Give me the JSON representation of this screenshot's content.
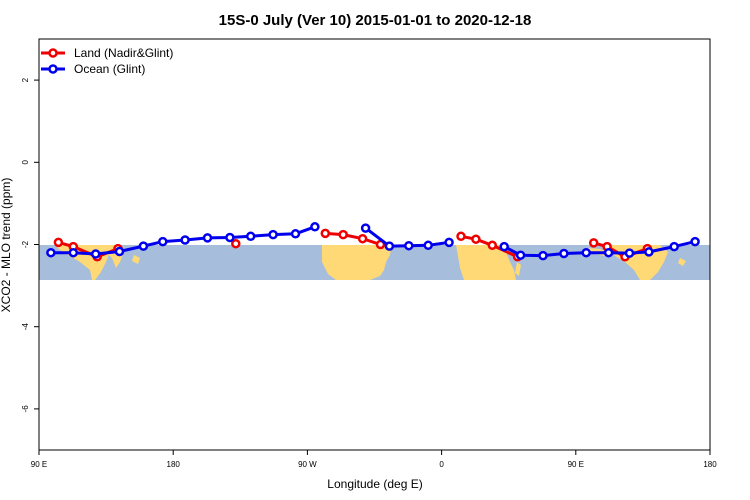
{
  "chart_data": {
    "type": "line",
    "title": "15S-0 July (Ver 10)   2015-01-01 to 2020-12-18",
    "xlabel": "Longitude (deg E)",
    "ylabel": "XCO2 - MLO trend (ppm)",
    "xlim": [
      90,
      540
    ],
    "ylim": [
      -7,
      3
    ],
    "x_ticks": [
      {
        "value": 90,
        "label": "90 E"
      },
      {
        "value": 180,
        "label": "180"
      },
      {
        "value": 270,
        "label": "90 W"
      },
      {
        "value": 360,
        "label": "0"
      },
      {
        "value": 450,
        "label": "90 E"
      },
      {
        "value": 540,
        "label": "180"
      }
    ],
    "y_ticks": [
      {
        "value": 2,
        "label": "2"
      },
      {
        "value": 0,
        "label": "0"
      },
      {
        "value": -2,
        "label": "-2"
      },
      {
        "value": -4,
        "label": "-4"
      },
      {
        "value": -6,
        "label": "-6"
      }
    ],
    "map_band": {
      "lat_range": [
        -15,
        0
      ],
      "ylim": [
        -2.85,
        -2.0
      ],
      "ocean_color": "#a6bddb",
      "land_color": "#fed976"
    },
    "legend_position": "top-left",
    "series": [
      {
        "name": "Land (Nadir&Glint)",
        "color": "#ee0000",
        "segments": [
          {
            "x": [
              103,
              113,
              129,
              143
            ],
            "y": [
              -1.95,
              -2.05,
              -2.3,
              -2.1
            ]
          },
          {
            "x": [
              222
            ],
            "y": [
              -1.98
            ]
          },
          {
            "x": [
              282,
              294,
              307,
              319
            ],
            "y": [
              -1.73,
              -1.76,
              -1.86,
              -2.0
            ]
          },
          {
            "x": [
              373,
              383,
              394,
              411
            ],
            "y": [
              -1.8,
              -1.87,
              -2.02,
              -2.3
            ]
          },
          {
            "x": [
              462,
              471,
              483,
              498
            ],
            "y": [
              -1.96,
              -2.05,
              -2.3,
              -2.1
            ]
          }
        ]
      },
      {
        "name": "Ocean (Glint)",
        "color": "#0000ee",
        "segments": [
          {
            "x": [
              98,
              113,
              128,
              144,
              160,
              173,
              188,
              203,
              218,
              232,
              247,
              262,
              275
            ],
            "y": [
              -2.2,
              -2.2,
              -2.23,
              -2.17,
              -2.04,
              -1.93,
              -1.89,
              -1.84,
              -1.83,
              -1.8,
              -1.76,
              -1.74,
              -1.57
            ]
          },
          {
            "x": [
              309,
              325,
              338,
              351,
              365
            ],
            "y": [
              -1.6,
              -2.04,
              -2.03,
              -2.02,
              -1.95
            ]
          },
          {
            "x": [
              402,
              413,
              428,
              442,
              457,
              472,
              486,
              499,
              516,
              530
            ],
            "y": [
              -2.05,
              -2.26,
              -2.27,
              -2.22,
              -2.2,
              -2.2,
              -2.21,
              -2.18,
              -2.05,
              -1.93
            ]
          }
        ]
      }
    ]
  }
}
